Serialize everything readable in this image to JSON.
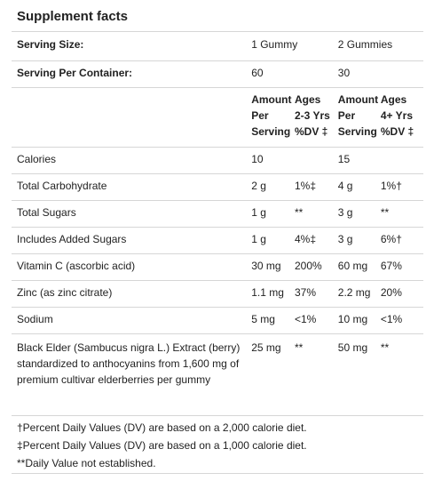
{
  "title": "Supplement facts",
  "serving_size": {
    "label": "Serving Size:",
    "a": "1 Gummy",
    "b": "2 Gummies"
  },
  "servings_per_container": {
    "label": "Serving Per Container:",
    "a": "60",
    "b": "30"
  },
  "column_headers": {
    "amount_a": "Amount Per Serving",
    "dv_a": "Ages 2-3 Yrs %DV ‡",
    "amount_b": "Amount Per Serving",
    "dv_b": "Ages 4+ Yrs %DV ‡"
  },
  "rows": [
    {
      "name": "Calories",
      "amount_a": "10",
      "dv_a": "",
      "amount_b": "15",
      "dv_b": ""
    },
    {
      "name": "Total Carbohydrate",
      "amount_a": "2 g",
      "dv_a": "1%‡",
      "amount_b": "4 g",
      "dv_b": "1%†"
    },
    {
      "name": "Total Sugars",
      "amount_a": "1 g",
      "dv_a": "**",
      "amount_b": "3 g",
      "dv_b": "**"
    },
    {
      "name": "Includes Added Sugars",
      "amount_a": "1 g",
      "dv_a": "4%‡",
      "amount_b": "3 g",
      "dv_b": "6%†"
    },
    {
      "name": "Vitamin C (ascorbic acid)",
      "amount_a": "30 mg",
      "dv_a": "200%",
      "amount_b": "60 mg",
      "dv_b": "67%"
    },
    {
      "name": "Zinc (as zinc citrate)",
      "amount_a": "1.1 mg",
      "dv_a": "37%",
      "amount_b": "2.2 mg",
      "dv_b": "20%"
    },
    {
      "name": "Sodium",
      "amount_a": "5 mg",
      "dv_a": "<1%",
      "amount_b": "10 mg",
      "dv_b": "<1%"
    },
    {
      "name": "Black Elder (Sambucus nigra L.) Extract (berry) standardized to anthocyanins from 1,600 mg of premium cultivar elderberries per gummy",
      "amount_a": "25 mg",
      "dv_a": "**",
      "amount_b": "50 mg",
      "dv_b": "**"
    }
  ],
  "footnotes": [
    "†Percent Daily Values (DV) are based on a 2,000 calorie diet.",
    "‡Percent Daily Values (DV) are based on a 1,000 calorie diet.",
    "**Daily Value not established."
  ]
}
